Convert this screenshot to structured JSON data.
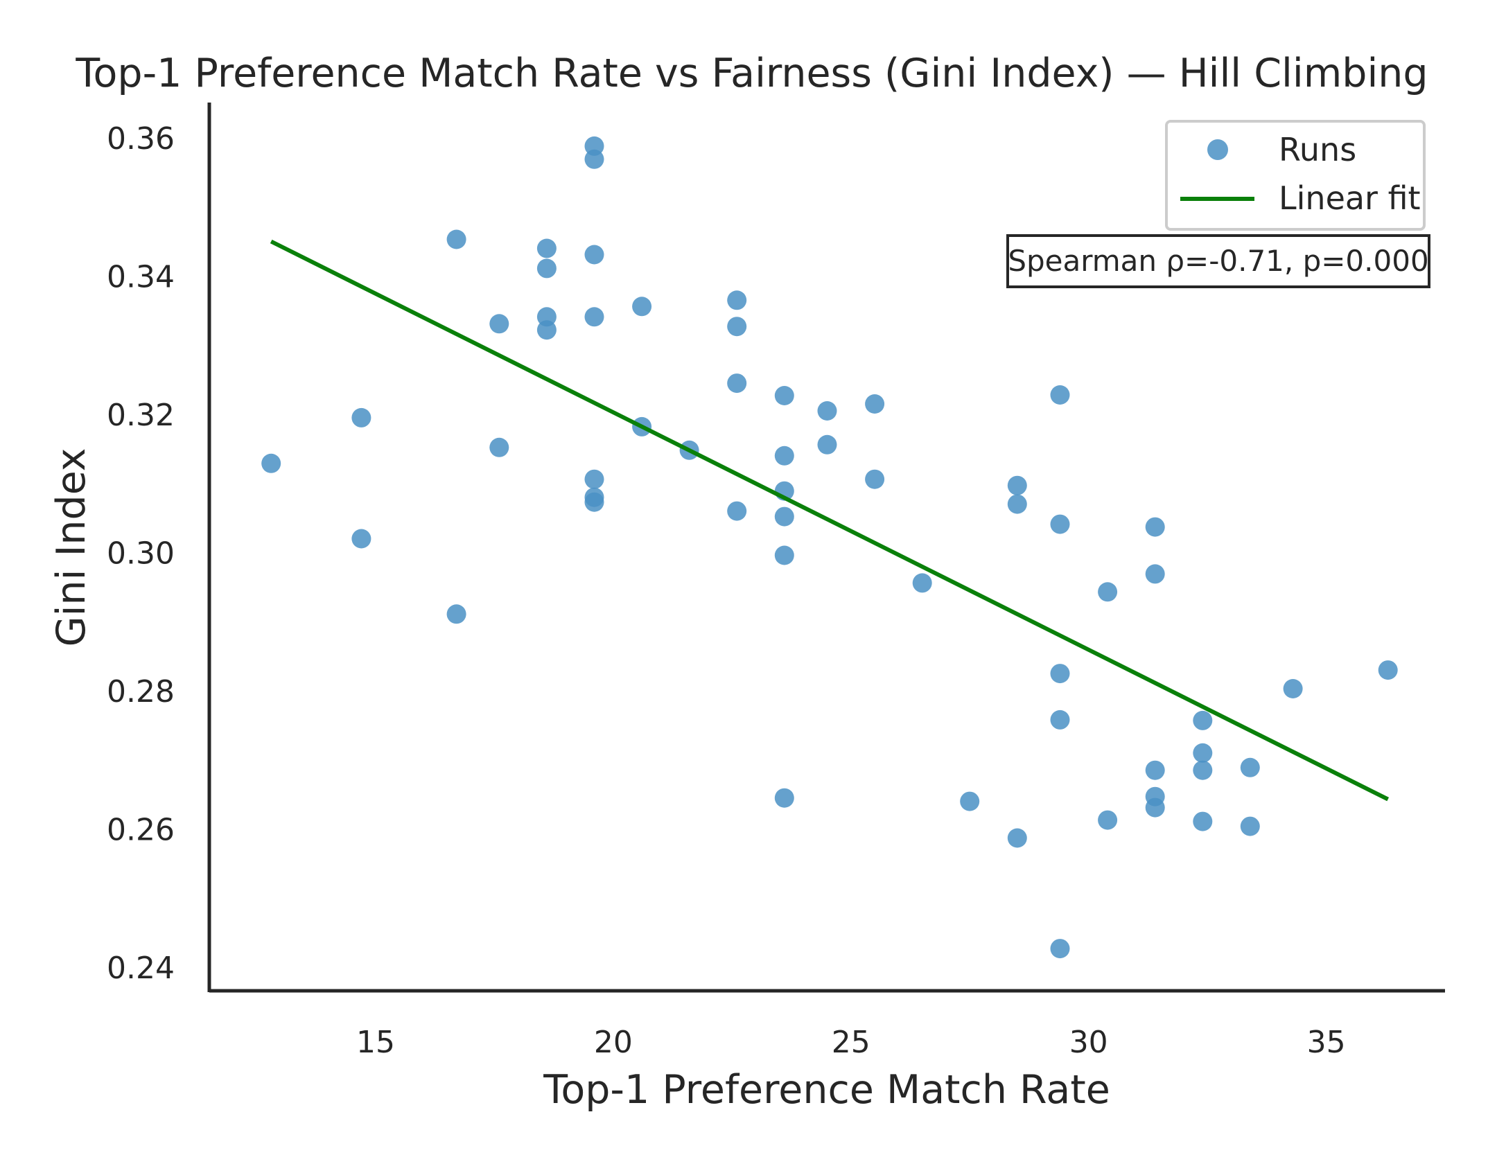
{
  "chart_data": {
    "type": "scatter",
    "title": "Top-1 Preference Match Rate vs Fairness (Gini Index) — Hill Climbing",
    "xlabel": "Top-1 Preference Match Rate",
    "ylabel": "Gini Index",
    "xlim": [
      11.5,
      37.5
    ],
    "ylim": [
      0.2367,
      0.3652
    ],
    "xticks": [
      15,
      20,
      25,
      30,
      35
    ],
    "xtick_labels": [
      "15",
      "20",
      "25",
      "30",
      "35"
    ],
    "yticks": [
      0.24,
      0.26,
      0.28,
      0.3,
      0.32,
      0.34,
      0.36
    ],
    "ytick_labels": [
      "0.24",
      "0.26",
      "0.28",
      "0.30",
      "0.32",
      "0.34",
      "0.36"
    ],
    "grid": false,
    "legend": {
      "placement": "top-right",
      "entries": [
        {
          "label": "Runs",
          "kind": "marker"
        },
        {
          "label": "Linear fit",
          "kind": "line"
        }
      ]
    },
    "annotation": "Spearman ρ=-0.71, p=0.000",
    "colors": {
      "points": "#4a90c4",
      "fit": "#0a800a",
      "axes": "#262626"
    },
    "series": [
      {
        "name": "Runs",
        "type": "scatter",
        "points": [
          [
            12.8,
            0.313
          ],
          [
            14.7,
            0.3196
          ],
          [
            14.7,
            0.3021
          ],
          [
            16.7,
            0.3454
          ],
          [
            16.7,
            0.2912
          ],
          [
            17.6,
            0.3332
          ],
          [
            17.6,
            0.3153
          ],
          [
            18.6,
            0.3441
          ],
          [
            18.6,
            0.3412
          ],
          [
            18.6,
            0.3342
          ],
          [
            18.6,
            0.3323
          ],
          [
            19.6,
            0.3589
          ],
          [
            19.6,
            0.357
          ],
          [
            19.6,
            0.3432
          ],
          [
            19.6,
            0.3342
          ],
          [
            19.6,
            0.3107
          ],
          [
            19.6,
            0.3081
          ],
          [
            19.6,
            0.3074
          ],
          [
            20.6,
            0.3357
          ],
          [
            20.6,
            0.3183
          ],
          [
            21.6,
            0.3149
          ],
          [
            22.6,
            0.3366
          ],
          [
            22.6,
            0.3328
          ],
          [
            22.6,
            0.3246
          ],
          [
            22.6,
            0.3061
          ],
          [
            23.6,
            0.3228
          ],
          [
            23.6,
            0.3141
          ],
          [
            23.6,
            0.309
          ],
          [
            23.6,
            0.3053
          ],
          [
            23.6,
            0.2997
          ],
          [
            23.6,
            0.2646
          ],
          [
            24.5,
            0.3206
          ],
          [
            24.5,
            0.3157
          ],
          [
            25.5,
            0.3216
          ],
          [
            25.5,
            0.3107
          ],
          [
            26.5,
            0.2957
          ],
          [
            27.5,
            0.2641
          ],
          [
            28.5,
            0.3098
          ],
          [
            28.5,
            0.3071
          ],
          [
            28.5,
            0.2588
          ],
          [
            29.4,
            0.3229
          ],
          [
            29.4,
            0.3042
          ],
          [
            29.4,
            0.2826
          ],
          [
            29.4,
            0.2759
          ],
          [
            29.4,
            0.2428
          ],
          [
            30.4,
            0.2944
          ],
          [
            30.4,
            0.2614
          ],
          [
            31.4,
            0.3038
          ],
          [
            31.4,
            0.297
          ],
          [
            31.4,
            0.2686
          ],
          [
            31.4,
            0.2648
          ],
          [
            31.4,
            0.2632
          ],
          [
            32.4,
            0.2758
          ],
          [
            32.4,
            0.2711
          ],
          [
            32.4,
            0.2686
          ],
          [
            32.4,
            0.2612
          ],
          [
            33.4,
            0.269
          ],
          [
            33.4,
            0.2605
          ],
          [
            34.3,
            0.2804
          ],
          [
            36.3,
            0.2831
          ]
        ]
      },
      {
        "name": "Linear fit",
        "type": "line",
        "points": [
          [
            12.8,
            0.3451
          ],
          [
            36.3,
            0.2644
          ]
        ]
      }
    ]
  }
}
